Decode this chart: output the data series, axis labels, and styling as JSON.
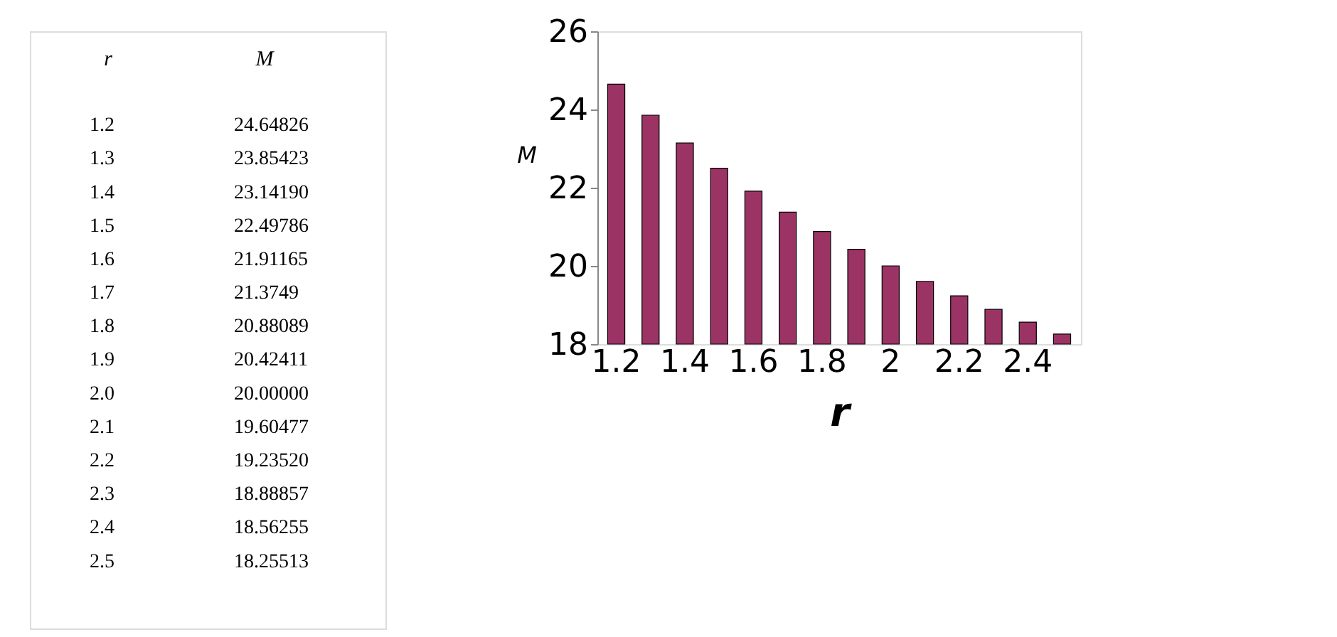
{
  "chart_data": [
    {
      "type": "other",
      "annotations": [
        "r",
        "M",
        "1.2",
        "24.64826",
        "1.3",
        "23.85423",
        "1.4",
        "23.14190",
        "1.5",
        "22.49786",
        "1.6",
        "21.91165",
        "1.7",
        "21.3749",
        "1.8",
        "20.88089",
        "1.9",
        "20.42411",
        "2.0",
        "20.00000",
        "2.1",
        "19.60477",
        "2.2",
        "19.23520",
        "2.3",
        "18.88857",
        "2.4",
        "18.56255",
        "2.5",
        "18.25513"
      ]
    },
    {
      "type": "bar",
      "xlabel": "r",
      "ylabel": "M",
      "categories": [
        "1.2",
        null,
        "1.4",
        null,
        "1.6",
        null,
        "1.8",
        null,
        "2",
        null,
        "2.2",
        null,
        "2.4",
        null
      ],
      "values": [
        24.64826,
        23.85423,
        23.1419,
        22.49786,
        21.91165,
        21.3749,
        20.88089,
        20.42411,
        20.0,
        19.60477,
        19.2352,
        18.88857,
        18.56255,
        18.25513
      ],
      "color": "#9b3465",
      "ylim": [
        18,
        26
      ],
      "yticks": [
        18,
        20,
        22,
        24,
        26
      ],
      "grid": false,
      "legend": false
    }
  ]
}
